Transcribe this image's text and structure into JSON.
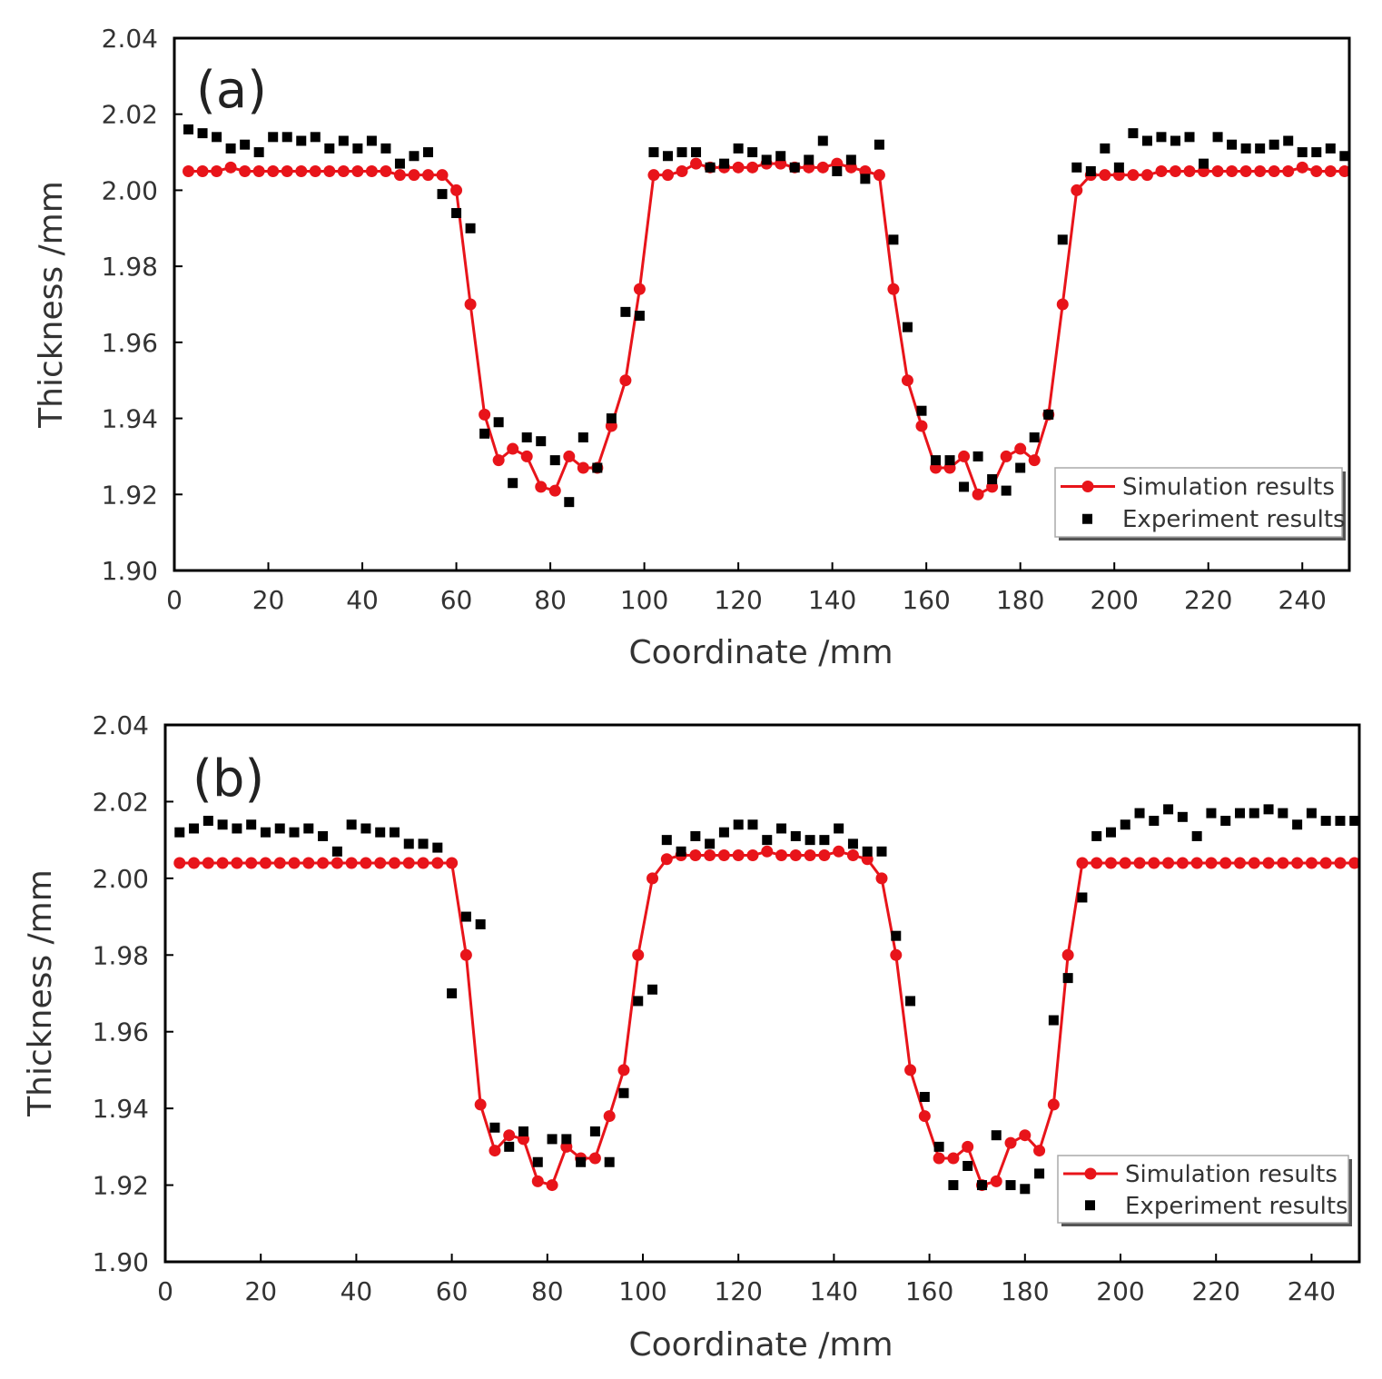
{
  "chart_data": [
    {
      "type": "line",
      "panel_label": "(a)",
      "xlabel": "Coordinate /mm",
      "ylabel": "Thickness /mm",
      "xlim": [
        0,
        250
      ],
      "ylim": [
        1.9,
        2.04
      ],
      "xticks": [
        "0",
        "20",
        "40",
        "60",
        "80",
        "100",
        "120",
        "140",
        "160",
        "180",
        "200",
        "220",
        "240"
      ],
      "yticks": [
        "1.90",
        "1.92",
        "1.94",
        "1.96",
        "1.98",
        "2.00",
        "2.02",
        "2.04"
      ],
      "legend": [
        "Simulation results",
        "Experiment results"
      ],
      "legend_position": "bottom-right",
      "series": [
        {
          "name": "Simulation results",
          "style": "line-circle",
          "color": "#e8141a",
          "x": [
            3,
            6,
            9,
            12,
            15,
            18,
            21,
            24,
            27,
            30,
            33,
            36,
            39,
            42,
            45,
            48,
            51,
            54,
            57,
            60,
            63,
            66,
            69,
            72,
            75,
            78,
            81,
            84,
            87,
            90,
            93,
            96,
            99,
            102,
            105,
            108,
            111,
            114,
            117,
            120,
            123,
            126,
            129,
            132,
            135,
            138,
            141,
            144,
            147,
            150,
            153,
            156,
            159,
            162,
            165,
            168,
            171,
            174,
            177,
            180,
            183,
            186,
            189,
            192,
            195,
            198,
            201,
            204,
            207,
            210,
            213,
            216,
            219,
            222,
            225,
            228,
            231,
            234,
            237,
            240,
            243,
            246,
            249
          ],
          "y": [
            2.005,
            2.005,
            2.005,
            2.006,
            2.005,
            2.005,
            2.005,
            2.005,
            2.005,
            2.005,
            2.005,
            2.005,
            2.005,
            2.005,
            2.005,
            2.004,
            2.004,
            2.004,
            2.004,
            2.0,
            1.97,
            1.941,
            1.929,
            1.932,
            1.93,
            1.922,
            1.921,
            1.93,
            1.927,
            1.927,
            1.938,
            1.95,
            1.974,
            2.004,
            2.004,
            2.005,
            2.007,
            2.006,
            2.006,
            2.006,
            2.006,
            2.007,
            2.007,
            2.006,
            2.006,
            2.006,
            2.007,
            2.006,
            2.005,
            2.004,
            1.974,
            1.95,
            1.938,
            1.927,
            1.927,
            1.93,
            1.92,
            1.922,
            1.93,
            1.932,
            1.929,
            1.941,
            1.97,
            2.0,
            2.004,
            2.004,
            2.004,
            2.004,
            2.004,
            2.005,
            2.005,
            2.005,
            2.005,
            2.005,
            2.005,
            2.005,
            2.005,
            2.005,
            2.005,
            2.006,
            2.005,
            2.005,
            2.005
          ]
        },
        {
          "name": "Experiment results",
          "style": "square-marker",
          "color": "#000000",
          "x": [
            3,
            6,
            9,
            12,
            15,
            18,
            21,
            24,
            27,
            30,
            33,
            36,
            39,
            42,
            45,
            48,
            51,
            54,
            57,
            60,
            63,
            66,
            69,
            72,
            75,
            78,
            81,
            84,
            87,
            90,
            93,
            96,
            99,
            102,
            105,
            108,
            111,
            114,
            117,
            120,
            123,
            126,
            129,
            132,
            135,
            138,
            141,
            144,
            147,
            150,
            153,
            156,
            159,
            162,
            165,
            168,
            171,
            174,
            177,
            180,
            183,
            186,
            189,
            192,
            195,
            198,
            201,
            204,
            207,
            210,
            213,
            216,
            219,
            222,
            225,
            228,
            231,
            234,
            237,
            240,
            243,
            246,
            249
          ],
          "y": [
            2.016,
            2.015,
            2.014,
            2.011,
            2.012,
            2.01,
            2.014,
            2.014,
            2.013,
            2.014,
            2.011,
            2.013,
            2.011,
            2.013,
            2.011,
            2.007,
            2.009,
            2.01,
            1.999,
            1.994,
            1.99,
            1.936,
            1.939,
            1.923,
            1.935,
            1.934,
            1.929,
            1.918,
            1.935,
            1.927,
            1.94,
            1.968,
            1.967,
            2.01,
            2.009,
            2.01,
            2.01,
            2.006,
            2.007,
            2.011,
            2.01,
            2.008,
            2.009,
            2.006,
            2.008,
            2.013,
            2.005,
            2.008,
            2.003,
            2.012,
            1.987,
            1.964,
            1.942,
            1.929,
            1.929,
            1.922,
            1.93,
            1.924,
            1.921,
            1.927,
            1.935,
            1.941,
            1.987,
            2.006,
            2.005,
            2.011,
            2.006,
            2.015,
            2.013,
            2.014,
            2.013,
            2.014,
            2.007,
            2.014,
            2.012,
            2.011,
            2.011,
            2.012,
            2.013,
            2.01,
            2.01,
            2.011,
            2.009
          ]
        }
      ]
    },
    {
      "type": "line",
      "panel_label": "(b)",
      "xlabel": "Coordinate /mm",
      "ylabel": "Thickness /mm",
      "xlim": [
        0,
        250
      ],
      "ylim": [
        1.9,
        2.04
      ],
      "xticks": [
        "0",
        "20",
        "40",
        "60",
        "80",
        "100",
        "120",
        "140",
        "160",
        "180",
        "200",
        "220",
        "240"
      ],
      "yticks": [
        "1.90",
        "1.92",
        "1.94",
        "1.96",
        "1.98",
        "2.00",
        "2.02",
        "2.04"
      ],
      "legend": [
        "Simulation results",
        "Experiment results"
      ],
      "legend_position": "bottom-right",
      "series": [
        {
          "name": "Simulation results",
          "style": "line-circle",
          "color": "#e8141a",
          "x": [
            3,
            6,
            9,
            12,
            15,
            18,
            21,
            24,
            27,
            30,
            33,
            36,
            39,
            42,
            45,
            48,
            51,
            54,
            57,
            60,
            63,
            66,
            69,
            72,
            75,
            78,
            81,
            84,
            87,
            90,
            93,
            96,
            99,
            102,
            105,
            108,
            111,
            114,
            117,
            120,
            123,
            126,
            129,
            132,
            135,
            138,
            141,
            144,
            147,
            150,
            153,
            156,
            159,
            162,
            165,
            168,
            171,
            174,
            177,
            180,
            183,
            186,
            189,
            192,
            195,
            198,
            201,
            204,
            207,
            210,
            213,
            216,
            219,
            222,
            225,
            228,
            231,
            234,
            237,
            240,
            243,
            246,
            249
          ],
          "y": [
            2.004,
            2.004,
            2.004,
            2.004,
            2.004,
            2.004,
            2.004,
            2.004,
            2.004,
            2.004,
            2.004,
            2.004,
            2.004,
            2.004,
            2.004,
            2.004,
            2.004,
            2.004,
            2.004,
            2.004,
            1.98,
            1.941,
            1.929,
            1.933,
            1.932,
            1.921,
            1.92,
            1.93,
            1.927,
            1.927,
            1.938,
            1.95,
            1.98,
            2.0,
            2.005,
            2.006,
            2.006,
            2.006,
            2.006,
            2.006,
            2.006,
            2.007,
            2.006,
            2.006,
            2.006,
            2.006,
            2.007,
            2.006,
            2.005,
            2.0,
            1.98,
            1.95,
            1.938,
            1.927,
            1.927,
            1.93,
            1.92,
            1.921,
            1.931,
            1.933,
            1.929,
            1.941,
            1.98,
            2.004,
            2.004,
            2.004,
            2.004,
            2.004,
            2.004,
            2.004,
            2.004,
            2.004,
            2.004,
            2.004,
            2.004,
            2.004,
            2.004,
            2.004,
            2.004,
            2.004,
            2.004,
            2.004,
            2.004
          ]
        },
        {
          "name": "Experiment results",
          "style": "square-marker",
          "color": "#000000",
          "x": [
            3,
            6,
            9,
            12,
            15,
            18,
            21,
            24,
            27,
            30,
            33,
            36,
            39,
            42,
            45,
            48,
            51,
            54,
            57,
            60,
            63,
            66,
            69,
            72,
            75,
            78,
            81,
            84,
            87,
            90,
            93,
            96,
            99,
            102,
            105,
            108,
            111,
            114,
            117,
            120,
            123,
            126,
            129,
            132,
            135,
            138,
            141,
            144,
            147,
            150,
            153,
            156,
            159,
            162,
            165,
            168,
            171,
            174,
            177,
            180,
            183,
            186,
            189,
            192,
            195,
            198,
            201,
            204,
            207,
            210,
            213,
            216,
            219,
            222,
            225,
            228,
            231,
            234,
            237,
            240,
            243,
            246,
            249
          ],
          "y": [
            2.012,
            2.013,
            2.015,
            2.014,
            2.013,
            2.014,
            2.012,
            2.013,
            2.012,
            2.013,
            2.011,
            2.007,
            2.014,
            2.013,
            2.012,
            2.012,
            2.009,
            2.009,
            2.008,
            1.97,
            1.99,
            1.988,
            1.935,
            1.93,
            1.934,
            1.926,
            1.932,
            1.932,
            1.926,
            1.934,
            1.926,
            1.944,
            1.968,
            1.971,
            2.01,
            2.007,
            2.011,
            2.009,
            2.012,
            2.014,
            2.014,
            2.01,
            2.013,
            2.011,
            2.01,
            2.01,
            2.013,
            2.009,
            2.007,
            2.007,
            1.985,
            1.968,
            1.943,
            1.93,
            1.92,
            1.925,
            1.92,
            1.933,
            1.92,
            1.919,
            1.923,
            1.963,
            1.974,
            1.995,
            2.011,
            2.012,
            2.014,
            2.017,
            2.015,
            2.018,
            2.016,
            2.011,
            2.017,
            2.015,
            2.017,
            2.017,
            2.018,
            2.017,
            2.014,
            2.017,
            2.015,
            2.015,
            2.015
          ]
        }
      ]
    }
  ]
}
